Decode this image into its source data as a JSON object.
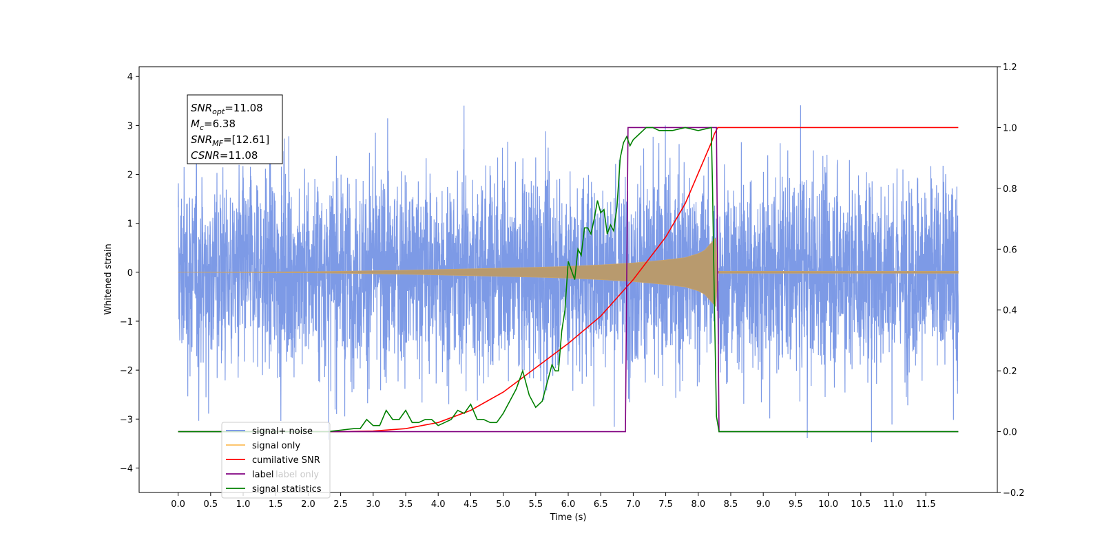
{
  "chart_data": {
    "type": "line",
    "xlabel": "Time (s)",
    "ylabel": "Whitened strain",
    "xlim": [
      -0.6,
      12.6
    ],
    "ylim_left": [
      -4.5,
      4.2
    ],
    "ylim_right": [
      -0.2,
      1.2
    ],
    "xticks": [
      "0.0",
      "0.5",
      "1.0",
      "1.5",
      "2.0",
      "2.5",
      "3.0",
      "3.5",
      "4.0",
      "4.5",
      "5.0",
      "5.5",
      "6.0",
      "6.5",
      "7.0",
      "7.5",
      "8.0",
      "8.5",
      "9.0",
      "9.5",
      "10.0",
      "10.5",
      "11.0",
      "11.5"
    ],
    "yticks_left": [
      "4",
      "3",
      "2",
      "1",
      "0",
      "−1",
      "−2",
      "−3",
      "−4"
    ],
    "yticks_right": [
      "1.2",
      "1.0",
      "0.8",
      "0.6",
      "0.4",
      "0.2",
      "0.0",
      "−0.2"
    ],
    "annotation": [
      {
        "base": "SNR",
        "sub": "opt",
        "value": "=11.08"
      },
      {
        "base": "M",
        "sub": "c",
        "value": "=6.38"
      },
      {
        "base": "SNR",
        "sub": "MF",
        "value": "=[12.61]"
      },
      {
        "base": "CSNR",
        "sub": "",
        "value": "=11.08"
      }
    ],
    "legend_placement": "lower-left",
    "legend": [
      {
        "label": "signal+ noise",
        "color": "#6f8fe3"
      },
      {
        "label": "signal only",
        "color": "#fdbd5a"
      },
      {
        "label": "cumilative SNR",
        "color": "#ff0000"
      },
      {
        "label": "label",
        "color": "#800080"
      },
      {
        "label": "signal statistics",
        "color": "#008000"
      }
    ],
    "hidden_text": "label only",
    "series": [
      {
        "name": "signal+ noise",
        "axis": "left",
        "color": "#6f8fe3",
        "description": "white noise with std ~1.0, x from 0.0 to 12.0",
        "x_start": 0.0,
        "x_end": 12.0
      },
      {
        "name": "signal only",
        "axis": "left",
        "color": "#fdbd5a",
        "envelope": {
          "x": [
            0.0,
            2.0,
            3.5,
            4.5,
            5.5,
            6.0,
            6.5,
            7.0,
            7.5,
            7.8,
            8.0,
            8.1,
            8.2,
            8.27,
            8.3,
            12.0
          ],
          "amplitude": [
            0.0,
            0.01,
            0.04,
            0.07,
            0.1,
            0.12,
            0.15,
            0.19,
            0.25,
            0.3,
            0.38,
            0.45,
            0.6,
            0.7,
            0.02,
            0.02
          ]
        }
      },
      {
        "name": "cumilative SNR",
        "axis": "right",
        "color": "#ff0000",
        "x": [
          0.0,
          1.0,
          2.0,
          2.5,
          3.0,
          3.5,
          4.0,
          4.5,
          5.0,
          5.5,
          6.0,
          6.5,
          7.0,
          7.5,
          7.8,
          8.0,
          8.1,
          8.2,
          8.25,
          8.3,
          12.0
        ],
        "values": [
          0.0,
          0.0,
          0.0,
          0.0,
          0.002,
          0.01,
          0.03,
          0.07,
          0.13,
          0.21,
          0.29,
          0.38,
          0.5,
          0.64,
          0.75,
          0.85,
          0.9,
          0.95,
          0.98,
          1.0,
          1.0
        ]
      },
      {
        "name": "label",
        "axis": "right",
        "color": "#800080",
        "x": [
          0.0,
          6.88,
          6.92,
          8.28,
          8.32,
          12.0
        ],
        "values": [
          0.0,
          0.0,
          1.0,
          1.0,
          0.0,
          0.0
        ]
      },
      {
        "name": "signal statistics",
        "axis": "right",
        "color": "#008000",
        "x": [
          0.0,
          2.0,
          2.3,
          2.5,
          2.7,
          2.8,
          2.9,
          3.0,
          3.1,
          3.2,
          3.3,
          3.4,
          3.5,
          3.6,
          3.7,
          3.8,
          3.9,
          4.0,
          4.1,
          4.2,
          4.3,
          4.4,
          4.5,
          4.6,
          4.7,
          4.8,
          4.9,
          5.0,
          5.1,
          5.2,
          5.3,
          5.4,
          5.5,
          5.6,
          5.7,
          5.75,
          5.8,
          5.85,
          5.9,
          5.95,
          6.0,
          6.1,
          6.15,
          6.2,
          6.25,
          6.3,
          6.35,
          6.4,
          6.45,
          6.5,
          6.55,
          6.6,
          6.65,
          6.7,
          6.75,
          6.8,
          6.85,
          6.9,
          6.95,
          7.0,
          7.1,
          7.15,
          7.2,
          7.3,
          7.4,
          7.6,
          7.8,
          8.0,
          8.2,
          8.22,
          8.25,
          8.28,
          8.32,
          8.35,
          8.4,
          12.0
        ],
        "values": [
          0.0,
          0.0,
          0.0,
          0.005,
          0.01,
          0.01,
          0.04,
          0.02,
          0.02,
          0.07,
          0.04,
          0.04,
          0.07,
          0.03,
          0.03,
          0.04,
          0.04,
          0.02,
          0.03,
          0.04,
          0.07,
          0.06,
          0.09,
          0.04,
          0.04,
          0.03,
          0.03,
          0.06,
          0.1,
          0.14,
          0.2,
          0.12,
          0.08,
          0.1,
          0.18,
          0.22,
          0.2,
          0.2,
          0.33,
          0.4,
          0.56,
          0.5,
          0.6,
          0.58,
          0.67,
          0.67,
          0.65,
          0.7,
          0.76,
          0.72,
          0.73,
          0.65,
          0.68,
          0.66,
          0.74,
          0.9,
          0.95,
          0.97,
          0.94,
          0.96,
          0.98,
          0.99,
          1.0,
          1.0,
          0.99,
          0.99,
          1.0,
          0.99,
          1.0,
          0.8,
          0.4,
          0.05,
          0.0,
          0.0,
          0.0,
          0.0
        ]
      }
    ]
  }
}
